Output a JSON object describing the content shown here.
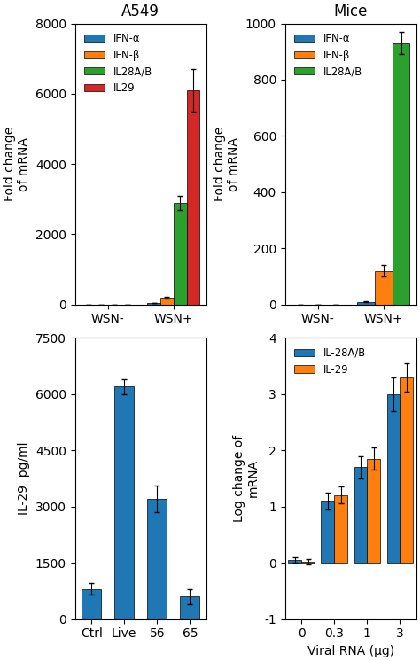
{
  "chart_data": [
    {
      "type": "bar",
      "title": "A549",
      "categories": [
        "WSN-",
        "WSN+"
      ],
      "series": [
        {
          "name": "IFN-α",
          "color": "#1f77b4",
          "values": [
            0,
            50
          ],
          "errors": [
            0,
            0
          ]
        },
        {
          "name": "IFN-β",
          "color": "#ff7f0e",
          "values": [
            0,
            200
          ],
          "errors": [
            0,
            30
          ]
        },
        {
          "name": "IL28A/B",
          "color": "#2ca02c",
          "values": [
            0,
            2900
          ],
          "errors": [
            0,
            200
          ]
        },
        {
          "name": "IL29",
          "color": "#d62728",
          "values": [
            0,
            6100
          ],
          "errors": [
            0,
            600
          ]
        }
      ],
      "ylabel": "Fold change\nof mRNA",
      "ylim": [
        0,
        8000
      ],
      "yticks": [
        0,
        2000,
        4000,
        6000,
        8000
      ],
      "legend": "upper left"
    },
    {
      "type": "bar",
      "title": "Mice",
      "categories": [
        "WSN-",
        "WSN+"
      ],
      "series": [
        {
          "name": "IFN-α",
          "color": "#1f77b4",
          "values": [
            0,
            10
          ],
          "errors": [
            0,
            2
          ]
        },
        {
          "name": "IFN-β",
          "color": "#ff7f0e",
          "values": [
            0,
            120
          ],
          "errors": [
            0,
            20
          ]
        },
        {
          "name": "IL28A/B",
          "color": "#2ca02c",
          "values": [
            0,
            930
          ],
          "errors": [
            0,
            40
          ]
        }
      ],
      "ylabel": "Fold change\nof mRNA",
      "ylim": [
        0,
        1000
      ],
      "yticks": [
        0,
        200,
        400,
        600,
        800,
        1000
      ],
      "legend": "upper left"
    },
    {
      "type": "bar",
      "categories": [
        "Ctrl",
        "Live",
        "56",
        "65"
      ],
      "values": [
        800,
        6200,
        3200,
        600
      ],
      "errors": [
        150,
        200,
        350,
        200
      ],
      "color": "#1f77b4",
      "ylabel": "IL-29  pg/ml",
      "ylim": [
        0,
        7500
      ],
      "yticks": [
        0,
        1500,
        3000,
        4500,
        6000,
        7500
      ]
    },
    {
      "type": "bar",
      "categories": [
        "0",
        "0.3",
        "1",
        "3"
      ],
      "series": [
        {
          "name": "IL-28A/B",
          "color": "#1f77b4",
          "values": [
            0.05,
            1.1,
            1.7,
            3.0
          ],
          "errors": [
            0.05,
            0.15,
            0.2,
            0.3
          ]
        },
        {
          "name": "IL-29",
          "color": "#ff7f0e",
          "values": [
            0.02,
            1.2,
            1.85,
            3.3
          ],
          "errors": [
            0.05,
            0.15,
            0.2,
            0.25
          ]
        }
      ],
      "xlabel": "Viral RNA (μg)",
      "ylabel": "Log change of\nmRNA",
      "ylim": [
        -1,
        4
      ],
      "yticks": [
        -1,
        0,
        1,
        2,
        3,
        4
      ],
      "legend": "upper left"
    }
  ]
}
